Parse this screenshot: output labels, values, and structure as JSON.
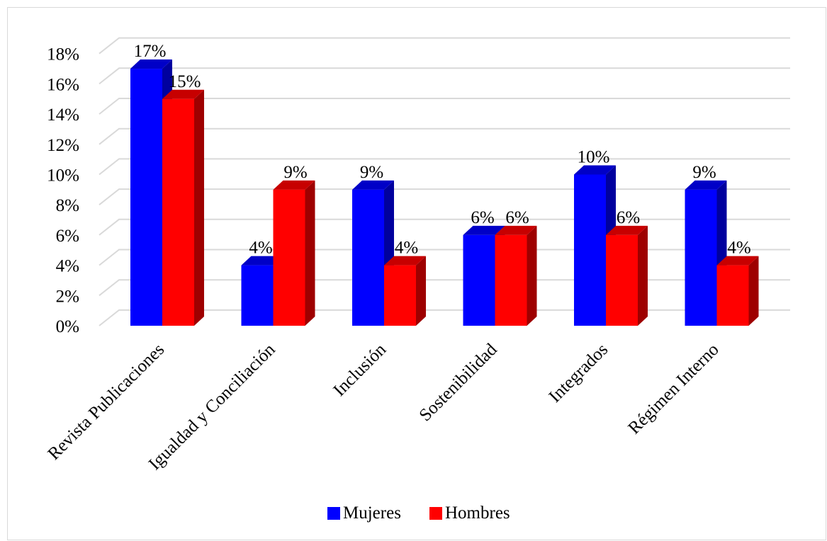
{
  "chart_data": {
    "type": "bar",
    "categories": [
      "Revista Publicaciones",
      "Igualdad y Conciliación",
      "Inclusión",
      "Sostenibilidad",
      "Integrados",
      "Régimen Interno"
    ],
    "series": [
      {
        "name": "Mujeres",
        "color": "#0000ff",
        "values": [
          17,
          4,
          9,
          6,
          10,
          9
        ]
      },
      {
        "name": "Hombres",
        "color": "#ff0000",
        "values": [
          15,
          9,
          4,
          6,
          6,
          4
        ]
      }
    ],
    "y_ticks": [
      "0%",
      "2%",
      "4%",
      "6%",
      "8%",
      "10%",
      "12%",
      "14%",
      "16%",
      "18%"
    ],
    "data_labels": [
      [
        "17%",
        "4%",
        "9%",
        "6%",
        "10%",
        "9%"
      ],
      [
        "15%",
        "9%",
        "4%",
        "6%",
        "6%",
        "4%"
      ]
    ],
    "ylim": [
      0,
      18
    ],
    "y_unit": "%",
    "style": "3d-clustered-column",
    "grid": true,
    "legend_position": "bottom"
  }
}
